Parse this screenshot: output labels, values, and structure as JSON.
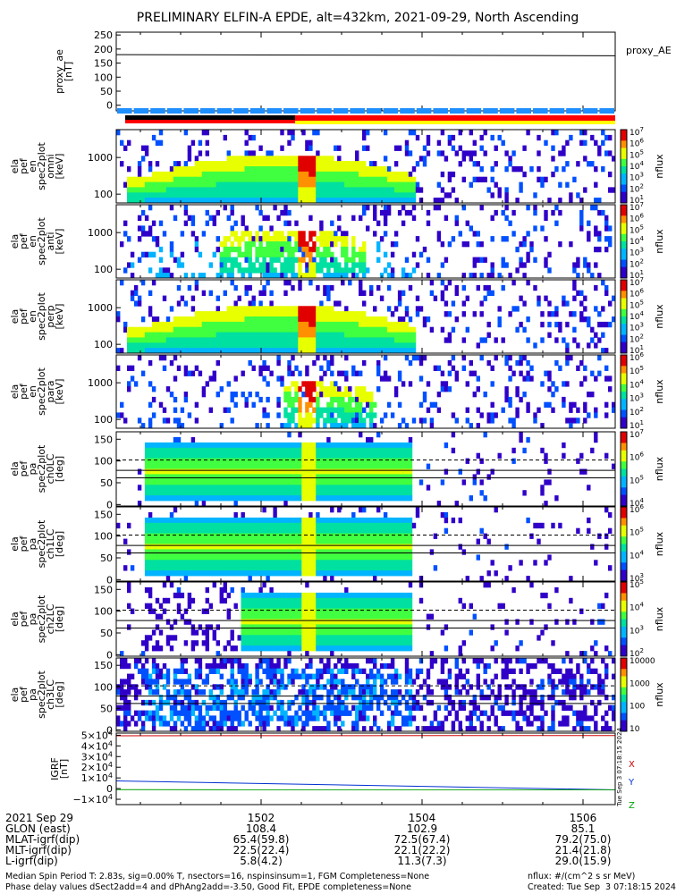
{
  "chart_data": {
    "title": "PRELIMINARY ELFIN-A EPDE, alt=432km, 2021-09-29, North Ascending",
    "x_tick_labels": [
      "1502",
      "1504",
      "1506"
    ],
    "x_ticks_minutes": [
      1502,
      1504,
      1506
    ],
    "x_range_minutes": [
      1500.2,
      1506.4
    ],
    "panels": [
      {
        "id": "proxy-ae",
        "type": "line",
        "ylabel": [
          "proxy_ae",
          "[nT]"
        ],
        "yticks": [
          "250",
          "200",
          "150",
          "100",
          "50",
          "0"
        ],
        "ylim": [
          -20,
          260
        ],
        "series": [
          {
            "name": "proxy_AE",
            "x": [
              1500.2,
              1502,
              1504,
              1506.4
            ],
            "y": [
              180,
              179,
              178,
              176
            ]
          }
        ],
        "legend": "proxy_AE",
        "legend_position": "right"
      },
      {
        "id": "spec-en-all",
        "type": "heatmap",
        "ylabel": [
          "ela",
          "pef",
          "en",
          "spec2plot",
          "omni",
          "[keV]"
        ],
        "yticks": [
          "1000",
          "100"
        ],
        "cbar_label": "nflux",
        "cbar_ticks": [
          "10^7",
          "10^6",
          "10^5",
          "10^4",
          "10^3",
          "10^2",
          "10^1"
        ]
      },
      {
        "id": "spec-en-perp",
        "type": "heatmap",
        "ylabel": [
          "ela",
          "pef",
          "en",
          "spec2plot",
          "anti",
          "[keV]"
        ],
        "yticks": [
          "1000",
          "100"
        ],
        "cbar_label": "nflux",
        "cbar_ticks": [
          "10^7",
          "10^6",
          "10^5",
          "10^4",
          "10^3",
          "10^2",
          "10^1"
        ]
      },
      {
        "id": "spec-en-trap",
        "type": "heatmap",
        "ylabel": [
          "ela",
          "pef",
          "en",
          "spec2plot",
          "perp",
          "[keV]"
        ],
        "yticks": [
          "1000",
          "100"
        ],
        "cbar_label": "nflux",
        "cbar_ticks": [
          "10^7",
          "10^6",
          "10^5",
          "10^4",
          "10^3",
          "10^2",
          "10^1"
        ]
      },
      {
        "id": "spec-en-para",
        "type": "heatmap",
        "ylabel": [
          "ela",
          "pef",
          "en",
          "spec2plot",
          "para",
          "[keV]"
        ],
        "yticks": [
          "1000",
          "100"
        ],
        "cbar_label": "nflux",
        "cbar_ticks": [
          "10^6",
          "10^5",
          "10^4",
          "10^3",
          "10^2",
          "10^1"
        ]
      },
      {
        "id": "pa-ch0",
        "type": "heatmap",
        "ylabel": [
          "ela",
          "pef",
          "pa",
          "spec2plot",
          "ch0LC",
          "[deg]"
        ],
        "yticks": [
          "150",
          "100",
          "50",
          "0"
        ],
        "cbar_label": "nflux",
        "cbar_ticks": [
          "10^7",
          "10^6",
          "10^5",
          "10^4"
        ]
      },
      {
        "id": "pa-ch1",
        "type": "heatmap",
        "ylabel": [
          "ela",
          "pef",
          "pa",
          "spec2plot",
          "ch1LC",
          "[deg]"
        ],
        "yticks": [
          "150",
          "100",
          "50",
          "0"
        ],
        "cbar_label": "nflux",
        "cbar_ticks": [
          "10^6",
          "10^5",
          "10^4",
          "10^3"
        ]
      },
      {
        "id": "pa-ch2",
        "type": "heatmap",
        "ylabel": [
          "ela",
          "pef",
          "pa",
          "spec2plot",
          "ch2LC",
          "[deg]"
        ],
        "yticks": [
          "150",
          "100",
          "50",
          "0"
        ],
        "cbar_label": "nflux",
        "cbar_ticks": [
          "10^5",
          "10^4",
          "10^3",
          "10^2"
        ]
      },
      {
        "id": "pa-ch3",
        "type": "heatmap",
        "ylabel": [
          "ela",
          "pef",
          "pa",
          "spec2plot",
          "ch3LC",
          "[deg]"
        ],
        "yticks": [
          "150",
          "100",
          "50",
          "0"
        ],
        "cbar_label": "nflux",
        "cbar_ticks": [
          "10000",
          "1000",
          "100",
          "10"
        ]
      },
      {
        "id": "igrf",
        "type": "line",
        "ylabel": [
          "IGRF",
          "[nT]"
        ],
        "yticks": [
          "5×10^4",
          "4×10^4",
          "3×10^4",
          "2×10^4",
          "1×10^4",
          "0",
          "−1×10^4"
        ],
        "ylim": [
          -15000,
          52000
        ],
        "series": [
          {
            "name": "X",
            "x": [
              1500.2,
              1506.4
            ],
            "y": [
              49500,
              49700
            ],
            "color": "#d00000"
          },
          {
            "name": "Y",
            "x": [
              1500.2,
              1506.4
            ],
            "y": [
              7200,
              -1200
            ],
            "color": "#0030d0"
          },
          {
            "name": "Z",
            "x": [
              1500.2,
              1506.4
            ],
            "y": [
              -1000,
              -1100
            ],
            "color": "#00a000"
          }
        ],
        "legend": [
          "X",
          "Y",
          "Z"
        ],
        "side_label": "Tue Sep  3 07:18:15 2024"
      }
    ]
  },
  "orbit_table": {
    "rows": [
      {
        "label": "2021 Sep 29",
        "values": [
          "1502",
          "1504",
          "1506"
        ]
      },
      {
        "label": "GLON (east)",
        "values": [
          "108.4",
          "102.9",
          "85.1"
        ]
      },
      {
        "label": "MLAT-igrf(dip)",
        "values": [
          "65.4(59.8)",
          "72.5(67.4)",
          "79.2(75.0)"
        ]
      },
      {
        "label": "MLT-igrf(dip)",
        "values": [
          "22.5(22.4)",
          "22.1(22.2)",
          "21.4(21.8)"
        ]
      },
      {
        "label": "L-igrf(dip)",
        "values": [
          "5.8(4.2)",
          "11.3(7.3)",
          "29.0(15.9)"
        ]
      }
    ]
  },
  "footer": {
    "line1_left": "Median Spin Period T: 2.83s, sig=0.00% T, nsectors=16, nspinsinsum=1, FGM Completeness=None",
    "line2_left": "Phase delay values dSect2add=4 and dPhAng2add=-3.50, Good Fit, EPDE completeness=None",
    "line1_right": "nflux: #/(cm^2 s sr MeV)",
    "line2_right": "Created: Tue Sep  3 07:18:15 2024"
  },
  "colors": {
    "bar_blue": "#1e8fff",
    "bar_red": "#ff0000",
    "bar_yellow": "#ffff00",
    "bar_black": "#000000"
  }
}
